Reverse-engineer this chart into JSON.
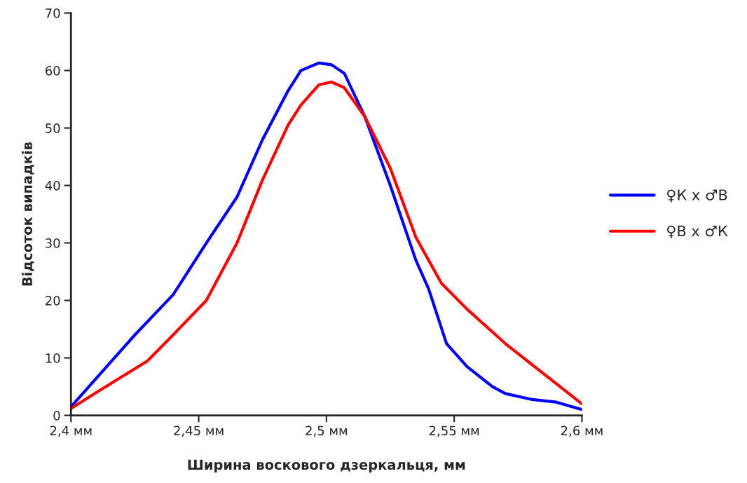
{
  "chart_data": {
    "type": "line",
    "xlabel": "Ширина воскового дзеркальця, мм",
    "ylabel": "Відсоток випадків",
    "xlim": [
      2.4,
      2.6
    ],
    "xticks": [
      {
        "value": 2.4,
        "label": "2,4 мм"
      },
      {
        "value": 2.45,
        "label": "2,45 мм"
      },
      {
        "value": 2.5,
        "label": "2,5 мм"
      },
      {
        "value": 2.55,
        "label": "2,55 мм"
      },
      {
        "value": 2.6,
        "label": "2,6 мм"
      }
    ],
    "ylim": [
      0,
      70
    ],
    "yticks": [
      0,
      10,
      20,
      30,
      40,
      50,
      60,
      70
    ],
    "grid": false,
    "legend": "right",
    "marker": "none",
    "line_style": "solid",
    "series": [
      {
        "name": "♀К х ♂В",
        "color": "#0000ff",
        "x": [
          2.4,
          2.425,
          2.44,
          2.453,
          2.465,
          2.475,
          2.485,
          2.49,
          2.497,
          2.502,
          2.507,
          2.515,
          2.525,
          2.535,
          2.54,
          2.547,
          2.555,
          2.565,
          2.57,
          2.58,
          2.59,
          2.6
        ],
        "values": [
          1.5,
          14,
          21,
          30,
          38,
          48,
          56.5,
          60,
          61.3,
          61,
          59.5,
          52,
          40,
          27,
          22,
          12.5,
          8.5,
          5,
          3.8,
          2.8,
          2.3,
          1
        ]
      },
      {
        "name": "♀В х ♂К",
        "color": "#ff0000",
        "x": [
          2.4,
          2.41,
          2.43,
          2.44,
          2.453,
          2.465,
          2.475,
          2.485,
          2.49,
          2.497,
          2.502,
          2.507,
          2.515,
          2.525,
          2.535,
          2.545,
          2.555,
          2.57,
          2.58,
          2.59,
          2.6
        ],
        "values": [
          1.2,
          4,
          9.5,
          14,
          20,
          30,
          41,
          50.5,
          54,
          57.5,
          58,
          57,
          52,
          43,
          31,
          23,
          18.5,
          12.5,
          9,
          5.5,
          2
        ]
      }
    ]
  }
}
